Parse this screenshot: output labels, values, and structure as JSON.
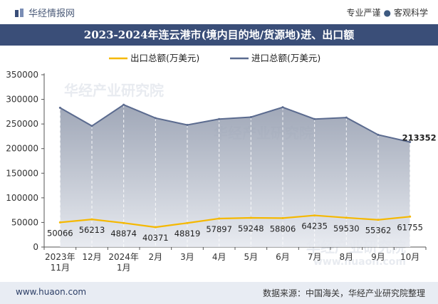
{
  "header": {
    "brand": "华经情报网",
    "tagline_left": "专业严谨",
    "tagline_right": "客观科学"
  },
  "footer": {
    "url": "www.huaon.com",
    "source": "数据来源：中国海关，华经产业研究院整理"
  },
  "watermarks": [
    "华经产业研究院",
    "www.huaon.com"
  ],
  "colors": {
    "export": "#f5b800",
    "import": "#5b6b8f",
    "area": "#b9c0cc",
    "title_bg": "#3a4e78"
  },
  "chart_data": {
    "type": "line",
    "title": "2023-2024年连云港市(境内目的地/货源地)进、出口额",
    "categories": [
      [
        "2023年",
        "11月"
      ],
      [
        "12月"
      ],
      [
        "2024年",
        "1月"
      ],
      [
        "2月"
      ],
      [
        "3月"
      ],
      [
        "4月"
      ],
      [
        "5月"
      ],
      [
        "6月"
      ],
      [
        "7月"
      ],
      [
        "8月"
      ],
      [
        "9月"
      ],
      [
        "10月"
      ]
    ],
    "ylim": [
      0,
      350000
    ],
    "yticks": [
      0,
      50000,
      100000,
      150000,
      200000,
      250000,
      300000,
      350000
    ],
    "series": [
      {
        "name": "出口总额(万美元)",
        "key": "export",
        "values": [
          50066,
          56213,
          48874,
          40371,
          48819,
          57897,
          59248,
          58806,
          64235,
          59530,
          55362,
          61755
        ],
        "labels": [
          "50066",
          "56213",
          "48874",
          "40371",
          "48819",
          "57897",
          "59248",
          "58806",
          "64235",
          "59530",
          "55362",
          "61755"
        ]
      },
      {
        "name": "进口总额(万美元)",
        "key": "import",
        "values": [
          283000,
          246000,
          289000,
          262000,
          248000,
          260000,
          264000,
          284000,
          260000,
          263000,
          228000,
          213352
        ],
        "labels": [
          "",
          "",
          "",
          "",
          "",
          "",
          "",
          "",
          "",
          "",
          "",
          "213352"
        ]
      }
    ]
  }
}
